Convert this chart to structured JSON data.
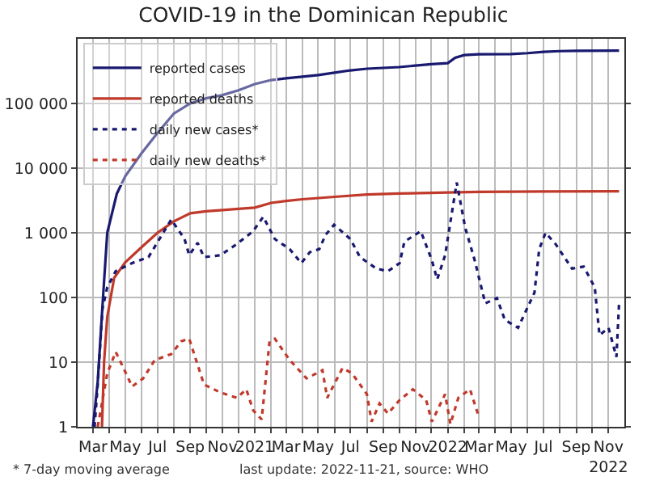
{
  "chart_data": {
    "type": "line",
    "title": "COVID-19 in the Dominican Republic",
    "annotations": [
      "* 7-day moving average",
      "last update: 2022-11-21, source: WHO"
    ],
    "log": "y",
    "grid": true,
    "legend": "top left",
    "xlim": [
      "2020-02-01",
      "2022-12-01"
    ],
    "xticks": [
      {
        "value": "2020-03",
        "label": "Mar"
      },
      {
        "value": "2020-04",
        "label": null
      },
      {
        "value": "2020-05",
        "label": "May"
      },
      {
        "value": "2020-06",
        "label": null
      },
      {
        "value": "2020-07",
        "label": "Jul"
      },
      {
        "value": "2020-08",
        "label": null
      },
      {
        "value": "2020-09",
        "label": "Sep"
      },
      {
        "value": "2020-10",
        "label": null
      },
      {
        "value": "2020-11",
        "label": "Nov"
      },
      {
        "value": "2020-12",
        "label": null
      },
      {
        "value": "2021-01",
        "label": "2021"
      },
      {
        "value": "2021-02",
        "label": null
      },
      {
        "value": "2021-03",
        "label": "Mar"
      },
      {
        "value": "2021-04",
        "label": null
      },
      {
        "value": "2021-05",
        "label": "May"
      },
      {
        "value": "2021-06",
        "label": null
      },
      {
        "value": "2021-07",
        "label": "Jul"
      },
      {
        "value": "2021-08",
        "label": null
      },
      {
        "value": "2021-09",
        "label": "Sep"
      },
      {
        "value": "2021-10",
        "label": null
      },
      {
        "value": "2021-11",
        "label": "Nov"
      },
      {
        "value": "2021-12",
        "label": null
      },
      {
        "value": "2022-01",
        "label": "2022"
      },
      {
        "value": "2022-02",
        "label": null
      },
      {
        "value": "2022-03",
        "label": "Mar"
      },
      {
        "value": "2022-04",
        "label": null
      },
      {
        "value": "2022-05",
        "label": "May"
      },
      {
        "value": "2022-06",
        "label": null
      },
      {
        "value": "2022-07",
        "label": "Jul"
      },
      {
        "value": "2022-08",
        "label": null
      },
      {
        "value": "2022-09",
        "label": "Sep"
      },
      {
        "value": "2022-10",
        "label": null
      },
      {
        "value": "2022-11",
        "label": "Nov\n2022"
      }
    ],
    "ylim": [
      1,
      1000000
    ],
    "yticks": [
      1,
      10,
      100,
      {
        "value": 1000,
        "label": "1 000"
      },
      {
        "value": 10000,
        "label": "10 000"
      },
      {
        "value": 100000,
        "label": "100 000"
      }
    ],
    "series": [
      {
        "name": "reported cases",
        "color": "#191970",
        "line_style": "solid",
        "x": [
          "2020-03-01",
          "2020-03-10",
          "2020-03-20",
          "2020-03-28",
          "2020-04-15",
          "2020-05-01",
          "2020-06-01",
          "2020-07-01",
          "2020-08-01",
          "2020-09-01",
          "2020-10-01",
          "2020-11-01",
          "2020-12-01",
          "2021-01-01",
          "2021-02-01",
          "2021-03-01",
          "2021-04-01",
          "2021-05-01",
          "2021-06-01",
          "2021-07-01",
          "2021-08-01",
          "2021-09-01",
          "2021-10-01",
          "2021-11-01",
          "2021-12-01",
          "2022-01-01",
          "2022-01-15",
          "2022-02-01",
          "2022-03-01",
          "2022-05-01",
          "2022-06-01",
          "2022-07-01",
          "2022-08-01",
          "2022-09-01",
          "2022-11-21"
        ],
        "values": [
          1,
          5,
          100,
          1000,
          4000,
          7500,
          17000,
          35000,
          70000,
          100000,
          120000,
          135000,
          160000,
          200000,
          230000,
          245000,
          260000,
          275000,
          300000,
          325000,
          345000,
          355000,
          365000,
          385000,
          405000,
          420000,
          510000,
          560000,
          575000,
          580000,
          600000,
          630000,
          645000,
          650000,
          655000
        ]
      },
      {
        "name": "reported deaths",
        "color": "#c0392b",
        "line_style": "solid",
        "x": [
          "2020-03-18",
          "2020-03-22",
          "2020-03-28",
          "2020-04-10",
          "2020-05-01",
          "2020-06-01",
          "2020-07-01",
          "2020-08-01",
          "2020-09-01",
          "2020-10-01",
          "2020-11-01",
          "2020-12-01",
          "2021-01-01",
          "2021-02-01",
          "2021-03-01",
          "2021-04-01",
          "2021-06-01",
          "2021-08-01",
          "2021-10-01",
          "2022-01-01",
          "2022-03-01",
          "2022-07-01",
          "2022-11-21"
        ],
        "values": [
          1,
          10,
          50,
          200,
          350,
          600,
          1000,
          1500,
          2000,
          2150,
          2250,
          2350,
          2450,
          2900,
          3100,
          3300,
          3600,
          3900,
          4050,
          4200,
          4300,
          4350,
          4380
        ]
      },
      {
        "name": "daily new cases*",
        "color": "#191970",
        "line_style": "dotted",
        "x": [
          "2020-03-04",
          "2020-03-10",
          "2020-03-19",
          "2020-03-28",
          "2020-04-13",
          "2020-05-14",
          "2020-06-14",
          "2020-07-05",
          "2020-07-27",
          "2020-08-21",
          "2020-08-30",
          "2020-09-15",
          "2020-09-27",
          "2020-10-28",
          "2020-11-28",
          "2020-12-29",
          "2021-01-17",
          "2021-02-08",
          "2021-03-08",
          "2021-03-30",
          "2021-04-15",
          "2021-05-03",
          "2021-05-15",
          "2021-05-31",
          "2021-07-01",
          "2021-07-19",
          "2021-08-19",
          "2021-09-10",
          "2021-10-02",
          "2021-10-11",
          "2021-11-11",
          "2021-12-02",
          "2021-12-12",
          "2021-12-27",
          "2022-01-18",
          "2022-02-03",
          "2022-02-21",
          "2022-03-13",
          "2022-04-04",
          "2022-04-19",
          "2022-05-14",
          "2022-06-14",
          "2022-06-23",
          "2022-07-05",
          "2022-07-24",
          "2022-08-24",
          "2022-09-15",
          "2022-10-06",
          "2022-10-15",
          "2022-11-01",
          "2022-11-16",
          "2022-11-21"
        ],
        "values": [
          1,
          4.5,
          67,
          144,
          255,
          340,
          420,
          810,
          1600,
          810,
          450,
          700,
          420,
          450,
          670,
          1060,
          1770,
          800,
          560,
          340,
          500,
          560,
          930,
          1330,
          800,
          420,
          280,
          255,
          340,
          730,
          1060,
          375,
          190,
          450,
          6000,
          1200,
          375,
          81,
          98,
          45,
          34,
          119,
          560,
          1000,
          670,
          280,
          300,
          144,
          26,
          34,
          12,
          81
        ]
      },
      {
        "name": "daily new deaths*",
        "color": "#c0392b",
        "line_style": "dotted",
        "x": [
          "2020-03-10",
          "2020-03-28",
          "2020-04-13",
          "2020-04-25",
          "2020-05-14",
          "2020-06-04",
          "2020-06-26",
          "2020-07-27",
          "2020-08-15",
          "2020-08-30",
          "2020-09-27",
          "2020-10-28",
          "2020-11-28",
          "2020-12-16",
          "2020-12-29",
          "2021-01-14",
          "2021-01-29",
          "2021-02-08",
          "2021-03-08",
          "2021-04-09",
          "2021-05-09",
          "2021-05-18",
          "2021-06-16",
          "2021-07-04",
          "2021-08-01",
          "2021-08-10",
          "2021-08-25",
          "2021-09-10",
          "2021-10-02",
          "2021-10-27",
          "2021-11-21",
          "2021-12-02",
          "2021-12-27",
          "2022-01-06",
          "2022-01-21",
          "2022-02-12",
          "2022-02-28"
        ],
        "values": [
          1,
          6.7,
          14.4,
          9,
          4.2,
          5.6,
          10.8,
          13.3,
          21,
          23,
          4.5,
          3.4,
          2.8,
          3.8,
          1.8,
          1.3,
          21,
          23,
          10.8,
          5.6,
          7.5,
          2.8,
          8.1,
          6.7,
          3.2,
          1.2,
          2.3,
          1.6,
          2.6,
          3.8,
          2.6,
          1.2,
          3.2,
          1.1,
          2.8,
          3.8,
          1.5
        ]
      }
    ]
  }
}
